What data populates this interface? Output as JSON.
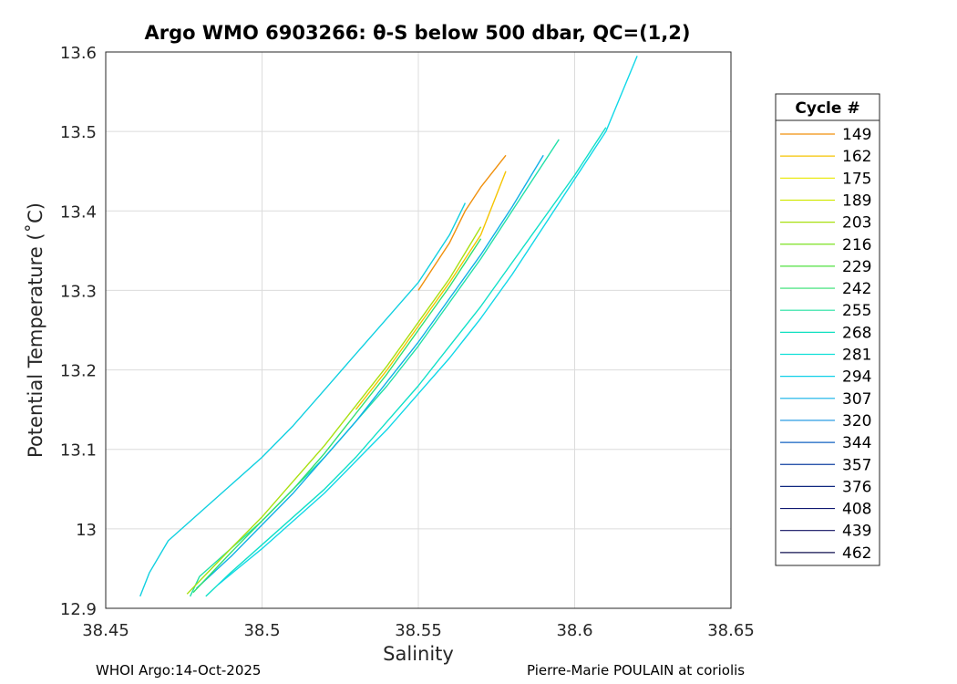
{
  "chart_data": {
    "type": "line",
    "title": "Argo WMO 6903266: θ-S below 500 dbar,  QC=(1,2)",
    "xlabel": "Salinity",
    "ylabel": "Potential Temperature (˚C)",
    "xlim": [
      38.45,
      38.65
    ],
    "ylim": [
      12.9,
      13.6
    ],
    "xticks": [
      "38.45",
      "38.5",
      "38.55",
      "38.6",
      "38.65"
    ],
    "yticks": [
      "12.9",
      "13",
      "13.1",
      "13.2",
      "13.3",
      "13.4",
      "13.5",
      "13.6"
    ],
    "grid": true,
    "legend": {
      "title": "Cycle #",
      "placement": "right-outside",
      "entries": [
        "149",
        "162",
        "175",
        "189",
        "203",
        "216",
        "229",
        "242",
        "255",
        "268",
        "281",
        "294",
        "307",
        "320",
        "344",
        "357",
        "376",
        "408",
        "439",
        "462"
      ],
      "colors": [
        "#f0900c",
        "#f5c400",
        "#e8e800",
        "#d0e800",
        "#a8e010",
        "#7ce020",
        "#50e040",
        "#30e070",
        "#20e0a0",
        "#10e0c0",
        "#10e0d8",
        "#10d0e8",
        "#10b0e8",
        "#1090e0",
        "#1060c0",
        "#1040a0",
        "#102880",
        "#101870",
        "#101060",
        "#101050"
      ]
    },
    "series": [
      {
        "color": "#10d0e0",
        "x": [
          38.461,
          38.464,
          38.47,
          38.48,
          38.49,
          38.5,
          38.51,
          38.52,
          38.53,
          38.54,
          38.55,
          38.56,
          38.565
        ],
        "y": [
          12.915,
          12.945,
          12.985,
          13.02,
          13.055,
          13.09,
          13.13,
          13.175,
          13.22,
          13.265,
          13.31,
          13.37,
          13.41
        ]
      },
      {
        "color": "#20e0a8",
        "x": [
          38.477,
          38.48,
          38.49,
          38.5,
          38.51,
          38.52,
          38.53,
          38.54,
          38.55,
          38.56,
          38.57,
          38.58,
          38.59,
          38.595
        ],
        "y": [
          12.915,
          12.94,
          12.975,
          13.01,
          13.05,
          13.09,
          13.135,
          13.18,
          13.23,
          13.285,
          13.34,
          13.4,
          13.46,
          13.49
        ]
      },
      {
        "color": "#10e0c8",
        "x": [
          38.482,
          38.49,
          38.5,
          38.51,
          38.52,
          38.53,
          38.54,
          38.55,
          38.56,
          38.57,
          38.58,
          38.59,
          38.6,
          38.61
        ],
        "y": [
          12.915,
          12.945,
          12.98,
          13.015,
          13.05,
          13.09,
          13.135,
          13.18,
          13.23,
          13.28,
          13.335,
          13.39,
          13.445,
          13.505
        ]
      },
      {
        "color": "#10d8e8",
        "x": [
          38.486,
          38.5,
          38.51,
          38.52,
          38.53,
          38.54,
          38.55,
          38.56,
          38.57,
          38.58,
          38.59,
          38.6,
          38.61,
          38.62
        ],
        "y": [
          12.93,
          12.975,
          13.01,
          13.045,
          13.085,
          13.125,
          13.17,
          13.215,
          13.265,
          13.32,
          13.38,
          13.44,
          13.5,
          13.595
        ]
      },
      {
        "color": "#10b0e8",
        "x": [
          38.479,
          38.49,
          38.5,
          38.51,
          38.52,
          38.53,
          38.54,
          38.55,
          38.56,
          38.57,
          38.58,
          38.59
        ],
        "y": [
          12.925,
          12.965,
          13.005,
          13.045,
          13.09,
          13.135,
          13.185,
          13.235,
          13.29,
          13.345,
          13.405,
          13.47
        ]
      },
      {
        "color": "#30e070",
        "x": [
          38.478,
          38.49,
          38.5,
          38.51,
          38.52,
          38.53,
          38.54,
          38.55,
          38.56,
          38.57
        ],
        "y": [
          12.92,
          12.97,
          13.01,
          13.05,
          13.095,
          13.145,
          13.195,
          13.25,
          13.305,
          13.365
        ]
      },
      {
        "color": "#a8e010",
        "x": [
          38.476,
          38.49,
          38.5,
          38.51,
          38.52,
          38.53,
          38.54,
          38.55,
          38.56,
          38.57
        ],
        "y": [
          12.918,
          12.975,
          13.015,
          13.06,
          13.105,
          13.155,
          13.205,
          13.26,
          13.315,
          13.38
        ]
      },
      {
        "color": "#f5c400",
        "x": [
          38.53,
          38.54,
          38.55,
          38.56,
          38.57,
          38.578
        ],
        "y": [
          13.15,
          13.2,
          13.255,
          13.31,
          13.37,
          13.45
        ]
      },
      {
        "color": "#f0900c",
        "x": [
          38.55,
          38.555,
          38.56,
          38.565,
          38.57,
          38.578
        ],
        "y": [
          13.3,
          13.33,
          13.36,
          13.4,
          13.43,
          13.47
        ]
      }
    ]
  },
  "footer": {
    "left": "WHOI Argo:14-Oct-2025",
    "right": "Pierre-Marie POULAIN at coriolis"
  }
}
